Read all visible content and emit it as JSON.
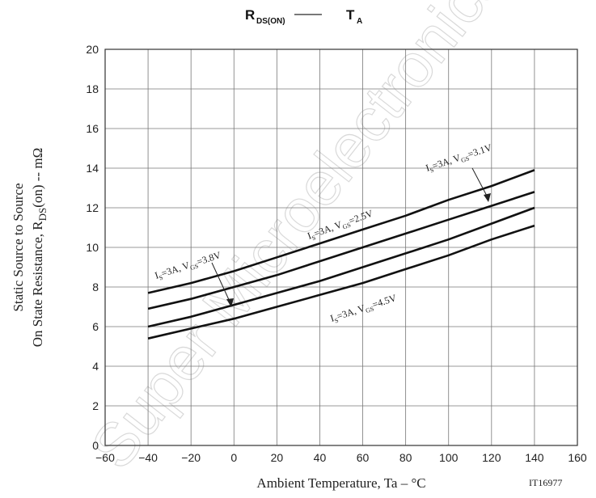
{
  "chart_data": {
    "type": "line",
    "title": {
      "main": "R",
      "main_sub": "DS(ON)",
      "separator": "——",
      "right": "T",
      "right_sub": "A"
    },
    "xlabel": "Ambient Temperature, Ta  –  °C",
    "ylabel": {
      "line1": "Static Source to Source",
      "line2_pre": "On State Resistance, R",
      "line2_sub": "DS",
      "line2_post": "(on)  --  mΩ"
    },
    "xlim": [
      -60,
      160
    ],
    "ylim": [
      0,
      20
    ],
    "x_ticks": [
      "-60",
      "-40",
      "-20",
      "0",
      "20",
      "40",
      "60",
      "80",
      "100",
      "120",
      "140",
      "160"
    ],
    "y_ticks": [
      "0",
      "2",
      "4",
      "6",
      "8",
      "10",
      "12",
      "14",
      "16",
      "18",
      "20"
    ],
    "grid": true,
    "series": [
      {
        "x": [
          -40,
          -20,
          0,
          20,
          40,
          60,
          80,
          100,
          120,
          140
        ],
        "y": [
          7.7,
          8.2,
          8.8,
          9.5,
          10.2,
          10.9,
          11.6,
          12.4,
          13.1,
          13.9
        ]
      },
      {
        "x": [
          -40,
          -20,
          0,
          20,
          40,
          60,
          80,
          100,
          120,
          140
        ],
        "y": [
          6.9,
          7.4,
          8.0,
          8.6,
          9.3,
          10.0,
          10.7,
          11.4,
          12.1,
          12.8
        ]
      },
      {
        "x": [
          -40,
          -20,
          0,
          20,
          40,
          60,
          80,
          100,
          120,
          140
        ],
        "y": [
          6.0,
          6.5,
          7.1,
          7.7,
          8.3,
          9.0,
          9.7,
          10.4,
          11.2,
          12.0
        ]
      },
      {
        "x": [
          -40,
          -20,
          0,
          20,
          40,
          60,
          80,
          100,
          120,
          140
        ],
        "y": [
          5.4,
          5.9,
          6.4,
          7.0,
          7.6,
          8.2,
          8.9,
          9.6,
          10.4,
          11.1
        ]
      }
    ],
    "annotations": [
      {
        "pre": "I",
        "sub1": "S",
        "mid": "=3A, V",
        "sub2": "GS",
        "post": "=3.1V"
      },
      {
        "pre": "I",
        "sub1": "S",
        "mid": "=3A, V",
        "sub2": "GS",
        "post": "=2.5V"
      },
      {
        "pre": "I",
        "sub1": "S",
        "mid": "=3A, V",
        "sub2": "GS",
        "post": "=3.8V"
      },
      {
        "pre": "I",
        "sub1": "S",
        "mid": "=3A, V",
        "sub2": "GS",
        "post": "=4.5V"
      }
    ],
    "code": "IT16977"
  },
  "watermark": "Super Microelectronics"
}
